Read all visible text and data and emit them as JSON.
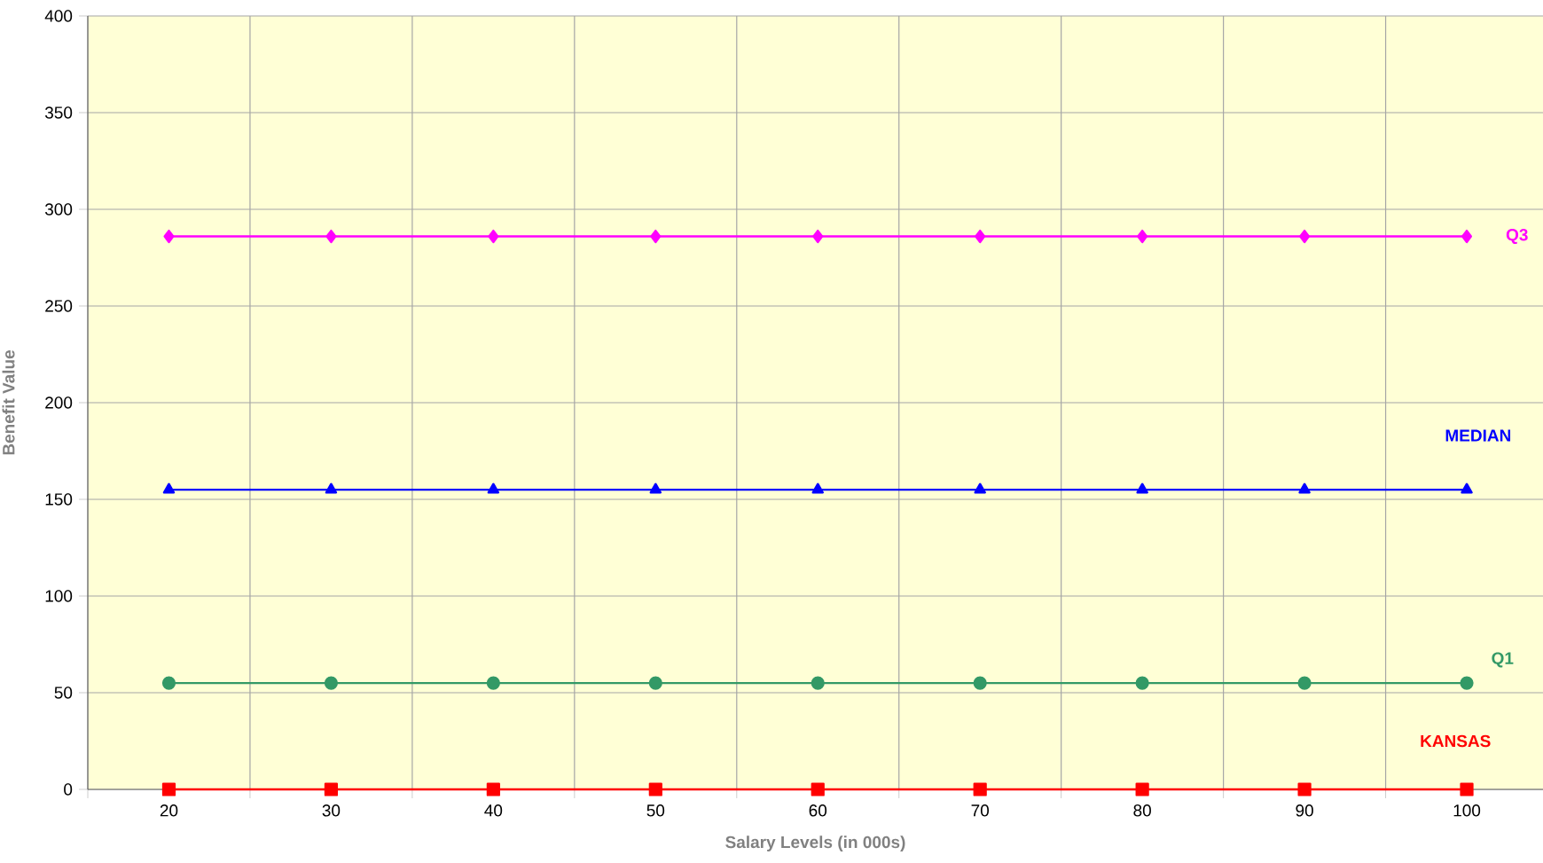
{
  "chart_data": {
    "type": "line",
    "xlabel": "Salary Levels (in 000s)",
    "ylabel": "Benefit Value",
    "categories": [
      "20",
      "30",
      "40",
      "50",
      "60",
      "70",
      "80",
      "90",
      "100"
    ],
    "series": [
      {
        "name": "Q3",
        "color": "#ff00ff",
        "marker": "diamond",
        "values": [
          286,
          286,
          286,
          286,
          286,
          286,
          286,
          286,
          286
        ]
      },
      {
        "name": "MEDIAN",
        "color": "#0000ff",
        "marker": "triangle",
        "values": [
          155,
          155,
          155,
          155,
          155,
          155,
          155,
          155,
          155
        ]
      },
      {
        "name": "Q1",
        "color": "#339966",
        "marker": "circle",
        "values": [
          55,
          55,
          55,
          55,
          55,
          55,
          55,
          55,
          55
        ]
      },
      {
        "name": "KANSAS",
        "color": "#ff0000",
        "marker": "square",
        "values": [
          0,
          0,
          0,
          0,
          0,
          0,
          0,
          0,
          0
        ]
      }
    ],
    "ylim": [
      0,
      400
    ],
    "yticks": [
      0,
      50,
      100,
      150,
      200,
      250,
      300,
      350,
      400
    ],
    "grid": true
  }
}
